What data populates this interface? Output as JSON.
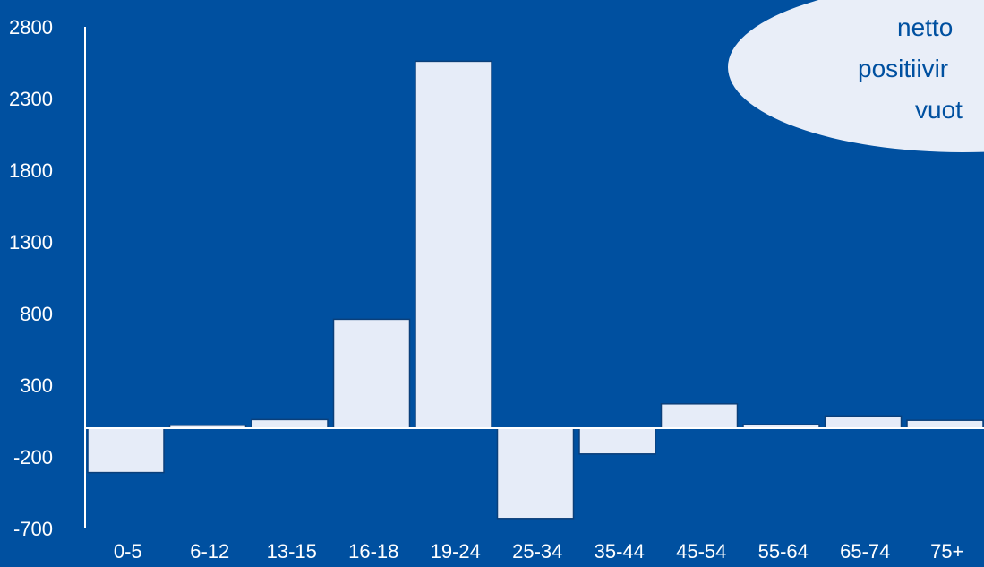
{
  "colors": {
    "background": "#0050A0",
    "bar_fill": "#E6ECF8",
    "bar_stroke": "#0A3F7A",
    "axis": "#FFFFFF",
    "tick_label": "#FFFFFF",
    "bubble_fill": "#E9EEF8",
    "bubble_text": "#0050A0"
  },
  "bubble": {
    "lines": [
      "netto",
      "positiivir",
      "vuot"
    ]
  },
  "chart_data": {
    "type": "bar",
    "categories": [
      "0-5",
      "6-12",
      "13-15",
      "16-18",
      "19-24",
      "25-34",
      "35-44",
      "45-54",
      "55-64",
      "65-74",
      "75+"
    ],
    "values": [
      -310,
      20,
      60,
      760,
      2560,
      -630,
      -180,
      170,
      25,
      85,
      55
    ],
    "yticks": [
      2800,
      2300,
      1800,
      1300,
      800,
      300,
      -200,
      -700
    ],
    "ylim": [
      -700,
      2800
    ],
    "title": "",
    "xlabel": "",
    "ylabel": "",
    "grid": false
  }
}
